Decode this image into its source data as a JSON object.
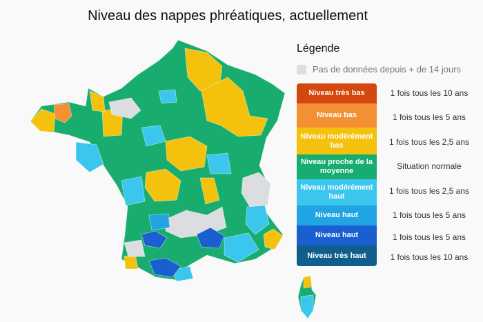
{
  "title": "Niveau des nappes phréatiques, actuellement",
  "legend": {
    "title": "Légende",
    "no_data": {
      "label": "Pas de données depuis + de 14 jours",
      "color": "#dcdde0"
    },
    "items": [
      {
        "label": "Niveau très bas",
        "frequency": "1 fois tous les 10 ans",
        "color": "#d4470f"
      },
      {
        "label": "Niveau bas",
        "frequency": "1 fois tous les 5 ans",
        "color": "#f39033"
      },
      {
        "label": "Niveau modérément bas",
        "frequency": "1 fois tous les 2,5 ans",
        "color": "#f4c20d"
      },
      {
        "label": "Niveau proche de la moyenne",
        "frequency": "Situation normale",
        "color": "#18ad6f"
      },
      {
        "label": "Niveau modérément haut",
        "frequency": "1 fois tous les 2,5 ans",
        "color": "#3bc6ee"
      },
      {
        "label": "Niveau haut",
        "frequency": "1 fois tous les 5 ans",
        "color": "#21a4e4"
      },
      {
        "label": "Niveau haut",
        "frequency": "1 fois tous les 5 ans",
        "color": "#1a5fd0"
      },
      {
        "label": "Niveau très haut",
        "frequency": "1 fois tous les 10 ans",
        "color": "#0f5e8c"
      }
    ]
  }
}
